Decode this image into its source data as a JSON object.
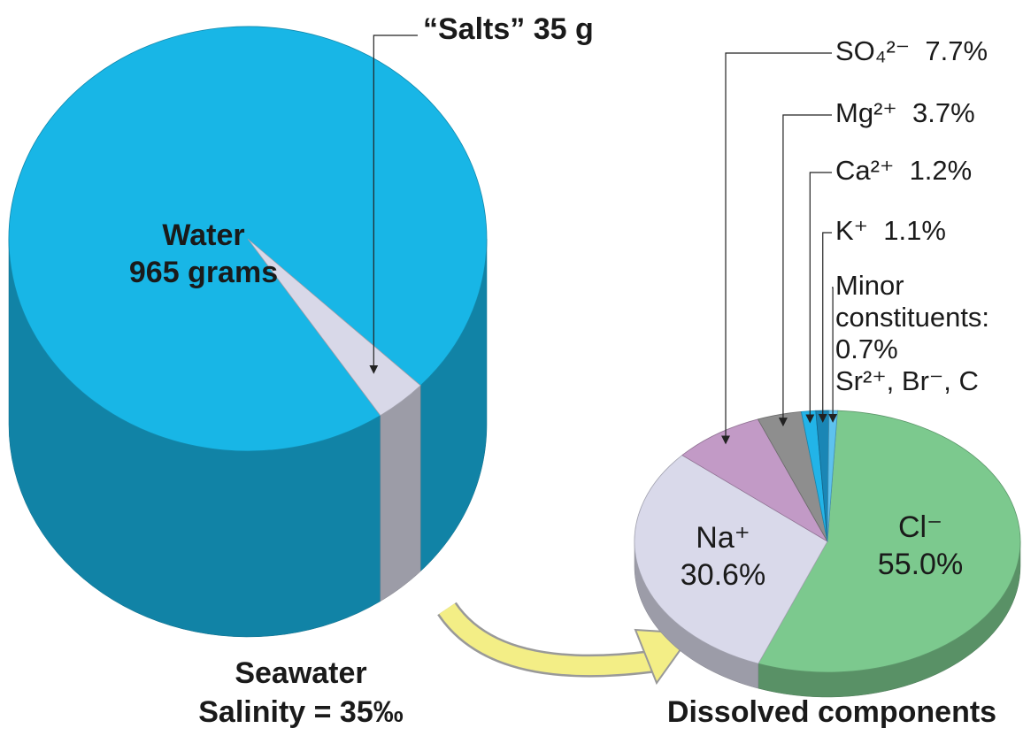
{
  "chart_data": [
    {
      "type": "pie",
      "title": "Seawater",
      "subtitle": "Salinity = 35‰",
      "categories": [
        "Water",
        "“Salts”"
      ],
      "values": [
        965,
        35
      ],
      "value_labels": [
        "965 grams",
        "35 g"
      ],
      "colors": [
        "#18b6e6",
        "#d8d8e8"
      ]
    },
    {
      "type": "pie",
      "title": "Dissolved components",
      "categories": [
        "Cl⁻",
        "Na⁺",
        "SO₄²⁻",
        "Mg²⁺",
        "Ca²⁺",
        "K⁺",
        "Minor constituents:"
      ],
      "values": [
        55.0,
        30.6,
        7.7,
        3.7,
        1.2,
        1.1,
        0.7
      ],
      "value_labels": [
        "55.0%",
        "30.6%",
        "7.7%",
        "3.7%",
        "1.2%",
        "1.1%",
        "0.7%"
      ],
      "colors": [
        "#7cc98e",
        "#d9d9ea",
        "#c29ac6",
        "#8e8e8e",
        "#22b4e8",
        "#1a86b5",
        "#5ec2ee"
      ],
      "annotation": "Sr²⁺, Br⁻, C"
    }
  ]
}
